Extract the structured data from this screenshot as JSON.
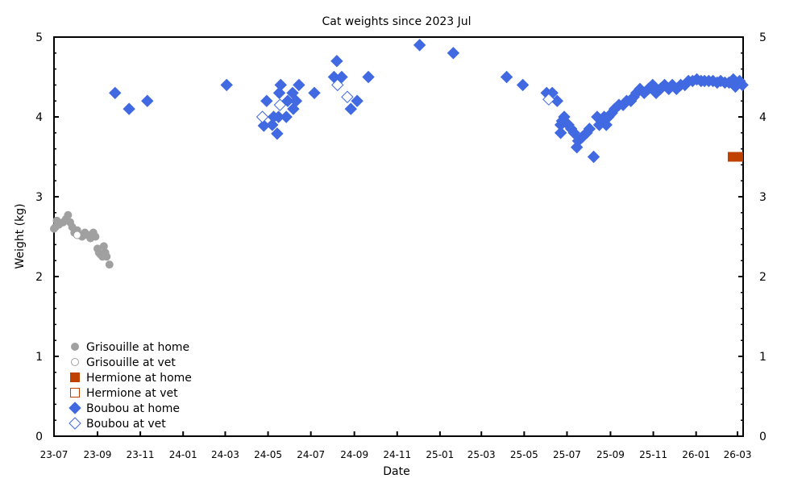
{
  "chart_data": {
    "type": "scatter",
    "title": "Cat weights since 2023 Jul",
    "xlabel": "Date",
    "ylabel": "Weight (kg)",
    "xlim": [
      "2023-07-01",
      "2026-03-09"
    ],
    "ylim": [
      0,
      5
    ],
    "x_ticks": [
      "23-07",
      "23-09",
      "23-11",
      "24-01",
      "24-03",
      "24-05",
      "24-07",
      "24-09",
      "24-11",
      "25-01",
      "25-03",
      "25-05",
      "25-07",
      "25-09",
      "25-11",
      "26-01",
      "26-03"
    ],
    "y_ticks": [
      "0",
      "1",
      "2",
      "3",
      "4",
      "5"
    ],
    "grid": false,
    "legend_position": "bottom-left",
    "series": [
      {
        "name": "Grisouille at home",
        "marker": "circle-filled",
        "color": "#a0a0a0",
        "points": [
          [
            "2023-07-01",
            2.6
          ],
          [
            "2023-07-03",
            2.62
          ],
          [
            "2023-07-05",
            2.7
          ],
          [
            "2023-07-08",
            2.65
          ],
          [
            "2023-07-10",
            2.67
          ],
          [
            "2023-07-14",
            2.68
          ],
          [
            "2023-07-18",
            2.72
          ],
          [
            "2023-07-21",
            2.77
          ],
          [
            "2023-07-24",
            2.68
          ],
          [
            "2023-07-27",
            2.62
          ],
          [
            "2023-07-30",
            2.55
          ],
          [
            "2023-08-03",
            2.58
          ],
          [
            "2023-08-06",
            2.52
          ],
          [
            "2023-08-10",
            2.5
          ],
          [
            "2023-08-14",
            2.55
          ],
          [
            "2023-08-18",
            2.52
          ],
          [
            "2023-08-22",
            2.48
          ],
          [
            "2023-08-26",
            2.55
          ],
          [
            "2023-08-29",
            2.5
          ],
          [
            "2023-09-01",
            2.35
          ],
          [
            "2023-09-03",
            2.3
          ],
          [
            "2023-09-05",
            2.28
          ],
          [
            "2023-09-08",
            2.25
          ],
          [
            "2023-09-10",
            2.38
          ],
          [
            "2023-09-12",
            2.3
          ],
          [
            "2023-09-14",
            2.25
          ],
          [
            "2023-09-18",
            2.15
          ]
        ]
      },
      {
        "name": "Grisouille at vet",
        "marker": "circle-open",
        "color": "#a0a0a0",
        "points": [
          [
            "2023-08-03",
            2.52
          ]
        ]
      },
      {
        "name": "Hermione at home",
        "marker": "square-filled",
        "color": "#c04000",
        "points": [
          [
            "2026-02-22",
            3.5
          ],
          [
            "2026-03-02",
            3.5
          ]
        ]
      },
      {
        "name": "Hermione at vet",
        "marker": "square-open",
        "color": "#c04000",
        "points": []
      },
      {
        "name": "Boubou at home",
        "marker": "diamond-filled",
        "color": "#4169e1",
        "points": [
          [
            "2023-09-26",
            4.3
          ],
          [
            "2023-10-16",
            4.1
          ],
          [
            "2023-11-11",
            4.2
          ],
          [
            "2024-03-03",
            4.4
          ],
          [
            "2024-04-25",
            3.89
          ],
          [
            "2024-04-29",
            4.2
          ],
          [
            "2024-05-07",
            3.9
          ],
          [
            "2024-05-09",
            4.0
          ],
          [
            "2024-05-14",
            3.79
          ],
          [
            "2024-05-16",
            4.0
          ],
          [
            "2024-05-17",
            4.3
          ],
          [
            "2024-05-19",
            4.4
          ],
          [
            "2024-05-27",
            4.0
          ],
          [
            "2024-05-29",
            4.2
          ],
          [
            "2024-06-05",
            4.3
          ],
          [
            "2024-06-06",
            4.1
          ],
          [
            "2024-06-10",
            4.2
          ],
          [
            "2024-06-14",
            4.4
          ],
          [
            "2024-07-06",
            4.3
          ],
          [
            "2024-08-03",
            4.5
          ],
          [
            "2024-08-07",
            4.7
          ],
          [
            "2024-08-14",
            4.5
          ],
          [
            "2024-08-27",
            4.1
          ],
          [
            "2024-09-05",
            4.2
          ],
          [
            "2024-09-21",
            4.5
          ],
          [
            "2024-12-03",
            4.9
          ],
          [
            "2025-01-20",
            4.8
          ],
          [
            "2025-04-06",
            4.5
          ],
          [
            "2025-04-29",
            4.4
          ],
          [
            "2025-06-02",
            4.3
          ],
          [
            "2025-06-10",
            4.3
          ],
          [
            "2025-06-17",
            4.2
          ],
          [
            "2025-06-22",
            3.9
          ],
          [
            "2025-06-22",
            3.8
          ],
          [
            "2025-06-24",
            3.95
          ],
          [
            "2025-06-27",
            4.0
          ],
          [
            "2025-07-03",
            3.9
          ],
          [
            "2025-07-07",
            3.85
          ],
          [
            "2025-07-11",
            3.8
          ],
          [
            "2025-07-15",
            3.62
          ],
          [
            "2025-07-17",
            3.7
          ],
          [
            "2025-07-23",
            3.75
          ],
          [
            "2025-07-29",
            3.8
          ],
          [
            "2025-08-02",
            3.85
          ],
          [
            "2025-08-08",
            3.5
          ],
          [
            "2025-08-13",
            4.0
          ],
          [
            "2025-08-16",
            3.9
          ],
          [
            "2025-08-19",
            3.95
          ],
          [
            "2025-08-23",
            4.0
          ],
          [
            "2025-08-26",
            3.9
          ],
          [
            "2025-08-29",
            4.0
          ],
          [
            "2025-09-03",
            4.05
          ],
          [
            "2025-09-07",
            4.1
          ],
          [
            "2025-09-13",
            4.15
          ],
          [
            "2025-09-19",
            4.15
          ],
          [
            "2025-09-24",
            4.2
          ],
          [
            "2025-09-30",
            4.2
          ],
          [
            "2025-10-04",
            4.25
          ],
          [
            "2025-10-08",
            4.3
          ],
          [
            "2025-10-13",
            4.35
          ],
          [
            "2025-10-19",
            4.3
          ],
          [
            "2025-10-25",
            4.35
          ],
          [
            "2025-10-31",
            4.4
          ],
          [
            "2025-11-05",
            4.3
          ],
          [
            "2025-11-11",
            4.35
          ],
          [
            "2025-11-17",
            4.4
          ],
          [
            "2025-11-23",
            4.35
          ],
          [
            "2025-11-28",
            4.4
          ],
          [
            "2025-12-04",
            4.35
          ],
          [
            "2025-12-10",
            4.4
          ],
          [
            "2025-12-16",
            4.4
          ],
          [
            "2025-12-21",
            4.45
          ],
          [
            "2025-12-27",
            4.45
          ],
          [
            "2026-01-02",
            4.47
          ],
          [
            "2026-01-08",
            4.45
          ],
          [
            "2026-01-13",
            4.45
          ],
          [
            "2026-01-19",
            4.45
          ],
          [
            "2026-01-25",
            4.45
          ],
          [
            "2026-01-31",
            4.43
          ],
          [
            "2026-02-05",
            4.45
          ],
          [
            "2026-02-11",
            4.43
          ],
          [
            "2026-02-17",
            4.43
          ],
          [
            "2026-02-23",
            4.47
          ],
          [
            "2026-02-26",
            4.38
          ],
          [
            "2026-03-04",
            4.45
          ],
          [
            "2026-03-08",
            4.4
          ]
        ]
      },
      {
        "name": "Boubou at vet",
        "marker": "diamond-open",
        "color": "#4169e1",
        "points": [
          [
            "2024-04-23",
            4.0
          ],
          [
            "2024-05-18",
            4.15
          ],
          [
            "2024-08-08",
            4.4
          ],
          [
            "2024-08-22",
            4.25
          ],
          [
            "2025-06-05",
            4.22
          ]
        ]
      }
    ]
  }
}
